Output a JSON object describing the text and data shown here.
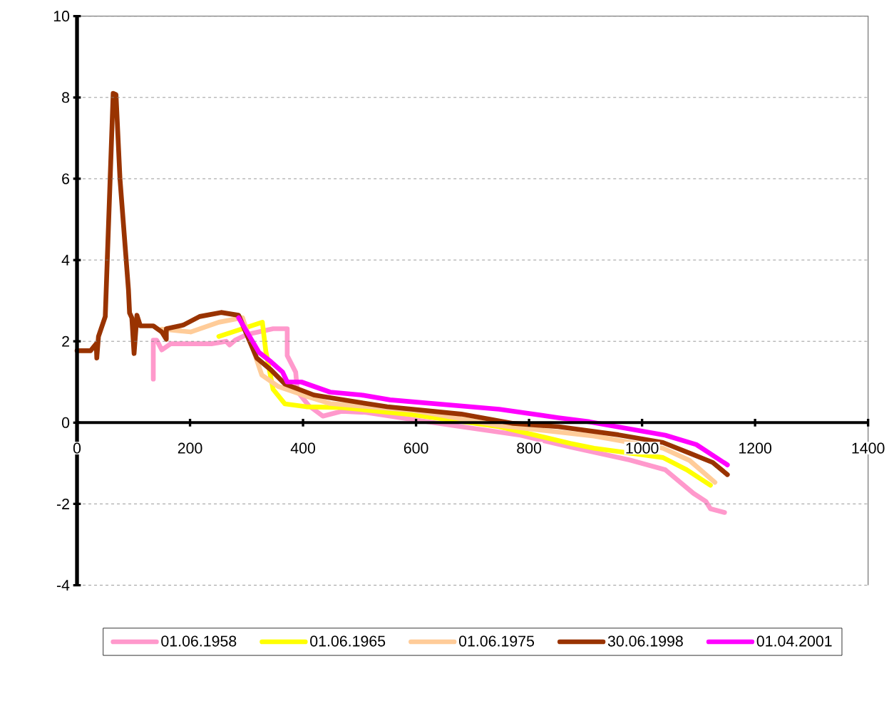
{
  "chart_data": {
    "type": "line",
    "xlim": [
      0,
      1400
    ],
    "xticks": [
      0,
      200,
      400,
      600,
      800,
      1000,
      1200,
      1400
    ],
    "ylim": [
      -4,
      10
    ],
    "yticks": [
      -4,
      -2,
      0,
      2,
      4,
      6,
      8,
      10
    ],
    "grid": "y",
    "legend": "bottom",
    "marker": "none",
    "line_style": "solid",
    "series": [
      {
        "name": "01.06.1958",
        "color": "#ff99cc",
        "x": [
          135,
          135,
          141,
          150,
          166,
          238,
          264,
          270,
          280,
          301,
          347,
          372,
          372,
          387,
          390,
          410,
          435,
          469,
          511,
          596,
          680,
          785,
          873,
          978,
          1041,
          1091,
          1113,
          1121,
          1146
        ],
        "values": [
          1.07,
          2.03,
          2.03,
          1.79,
          1.94,
          1.94,
          2.0,
          1.91,
          2.03,
          2.17,
          2.31,
          2.31,
          1.65,
          1.24,
          0.77,
          0.42,
          0.16,
          0.28,
          0.25,
          0.07,
          -0.1,
          -0.31,
          -0.6,
          -0.92,
          -1.16,
          -1.74,
          -1.94,
          -2.12,
          -2.21
        ]
      },
      {
        "name": "01.06.1965",
        "color": "#ffff00",
        "x": [
          251,
          328,
          334,
          347,
          368,
          406,
          469,
          596,
          747,
          873,
          915,
          1037,
          1079,
          1121
        ],
        "values": [
          2.12,
          2.47,
          1.77,
          0.82,
          0.46,
          0.39,
          0.37,
          0.19,
          -0.1,
          -0.51,
          -0.63,
          -0.86,
          -1.16,
          -1.54
        ]
      },
      {
        "name": "01.06.1975",
        "color": "#ffcc99",
        "x": [
          150,
          201,
          251,
          293,
          327,
          356,
          406,
          448,
          596,
          747,
          915,
          1037,
          1084,
          1129
        ],
        "values": [
          2.3,
          2.23,
          2.47,
          2.58,
          1.17,
          0.89,
          0.65,
          0.47,
          0.3,
          -0.07,
          -0.33,
          -0.63,
          -0.93,
          -1.47
        ]
      },
      {
        "name": "30.06.1998",
        "color": "#993300",
        "x": [
          0,
          24,
          34,
          35,
          38,
          50,
          64,
          69,
          76,
          91,
          93,
          97,
          101,
          106,
          110,
          112,
          135,
          150,
          158,
          158,
          188,
          217,
          255,
          286,
          318,
          343,
          368,
          419,
          453,
          549,
          680,
          772,
          852,
          958,
          1037,
          1084,
          1125,
          1151
        ],
        "values": [
          1.77,
          1.77,
          1.94,
          1.59,
          2.12,
          2.61,
          8.1,
          8.07,
          6.0,
          3.28,
          2.7,
          2.58,
          1.7,
          2.64,
          2.47,
          2.38,
          2.38,
          2.23,
          2.05,
          2.31,
          2.4,
          2.61,
          2.71,
          2.64,
          1.59,
          1.3,
          0.95,
          0.68,
          0.6,
          0.39,
          0.21,
          -0.02,
          -0.1,
          -0.3,
          -0.49,
          -0.75,
          -0.98,
          -1.28
        ]
      },
      {
        "name": "01.04.2001",
        "color": "#ff00ff",
        "x": [
          286,
          322,
          343,
          364,
          372,
          397,
          448,
          503,
          554,
          747,
          852,
          907,
          1041,
          1096,
          1151
        ],
        "values": [
          2.58,
          1.73,
          1.5,
          1.24,
          1.0,
          1.0,
          0.75,
          0.68,
          0.56,
          0.33,
          0.12,
          0.02,
          -0.31,
          -0.54,
          -1.04
        ]
      }
    ]
  }
}
